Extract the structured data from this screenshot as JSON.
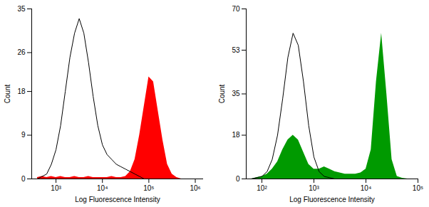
{
  "chart_data": [
    {
      "type": "area",
      "x_label": "Log Fluorescence Intensity",
      "y_label": "Count",
      "log": "x",
      "xlim": [
        300,
        1500000
      ],
      "ylim": [
        0,
        35
      ],
      "xticks": [
        {
          "value": 1000,
          "label": "10³"
        },
        {
          "value": 10000,
          "label": "10⁴"
        },
        {
          "value": 100000,
          "label": "10⁵"
        },
        {
          "value": 1000000,
          "label": "10⁶"
        }
      ],
      "yticks": [
        0,
        9,
        18,
        26,
        35
      ],
      "x": [
        398,
        501,
        631,
        794,
        1000,
        1259,
        1585,
        1995,
        2512,
        3162,
        3981,
        5012,
        6310,
        7943,
        10000,
        12589,
        15849,
        19953,
        25119,
        31623,
        39811,
        50119,
        63096,
        79433,
        100000,
        125893,
        158489,
        199526,
        251189,
        316228,
        398107,
        501187,
        630957,
        794328,
        1000000
      ],
      "series": [
        {
          "type": "line",
          "color": "#000000",
          "values": [
            0,
            0.5,
            1,
            3,
            6,
            11,
            18,
            25,
            30,
            33,
            30,
            24,
            17,
            11,
            7,
            5,
            4,
            3,
            2.5,
            2,
            1.5,
            1,
            0.5,
            0,
            0,
            0,
            0,
            0,
            0,
            0,
            0,
            0,
            0,
            0,
            0
          ]
        },
        {
          "type": "area",
          "color": "#ff0000",
          "values": [
            0.3,
            0.5,
            0.3,
            0.5,
            0.3,
            0.5,
            0.3,
            0.3,
            0.5,
            0.3,
            0.3,
            0.5,
            0.3,
            0.3,
            0.3,
            0.3,
            0.5,
            0.3,
            0.3,
            0.5,
            1.5,
            4,
            9,
            15,
            21,
            20,
            14,
            8,
            3,
            1,
            0.3,
            0,
            0,
            0,
            0
          ]
        }
      ]
    },
    {
      "type": "area",
      "x_label": "Log Fluorescence Intensity",
      "y_label": "Count",
      "log": "x",
      "xlim": [
        50,
        100000
      ],
      "ylim": [
        0,
        70
      ],
      "xticks": [
        {
          "value": 100,
          "label": "10²"
        },
        {
          "value": 1000,
          "label": "10³"
        },
        {
          "value": 10000,
          "label": "10⁴"
        },
        {
          "value": 100000,
          "label": "10⁵"
        }
      ],
      "yticks": [
        0,
        18,
        35,
        53,
        70
      ],
      "x": [
        50,
        63,
        79,
        100,
        126,
        158,
        200,
        251,
        316,
        398,
        501,
        631,
        794,
        1000,
        1259,
        1585,
        1995,
        2512,
        3162,
        3981,
        5012,
        6310,
        7943,
        10000,
        12589,
        15849,
        19953,
        25119,
        31623,
        39811,
        50119,
        63096,
        79433,
        100000
      ],
      "series": [
        {
          "type": "line",
          "color": "#000000",
          "values": [
            0,
            0,
            0.5,
            1,
            3,
            8,
            18,
            33,
            50,
            60,
            55,
            40,
            22,
            9,
            3,
            1,
            0.5,
            0,
            0,
            0,
            0,
            0,
            0,
            0,
            0,
            0,
            0,
            0,
            0,
            0,
            0,
            0,
            0,
            0
          ]
        },
        {
          "type": "area",
          "color": "#009a00",
          "values": [
            0,
            0,
            0.5,
            1,
            2,
            4,
            7,
            12,
            16,
            18,
            16,
            11,
            6,
            4,
            4,
            5,
            4,
            3,
            2.5,
            2,
            2,
            2,
            2.5,
            4,
            12,
            40,
            60,
            35,
            8,
            1,
            0.3,
            0,
            0,
            0
          ]
        }
      ]
    }
  ]
}
